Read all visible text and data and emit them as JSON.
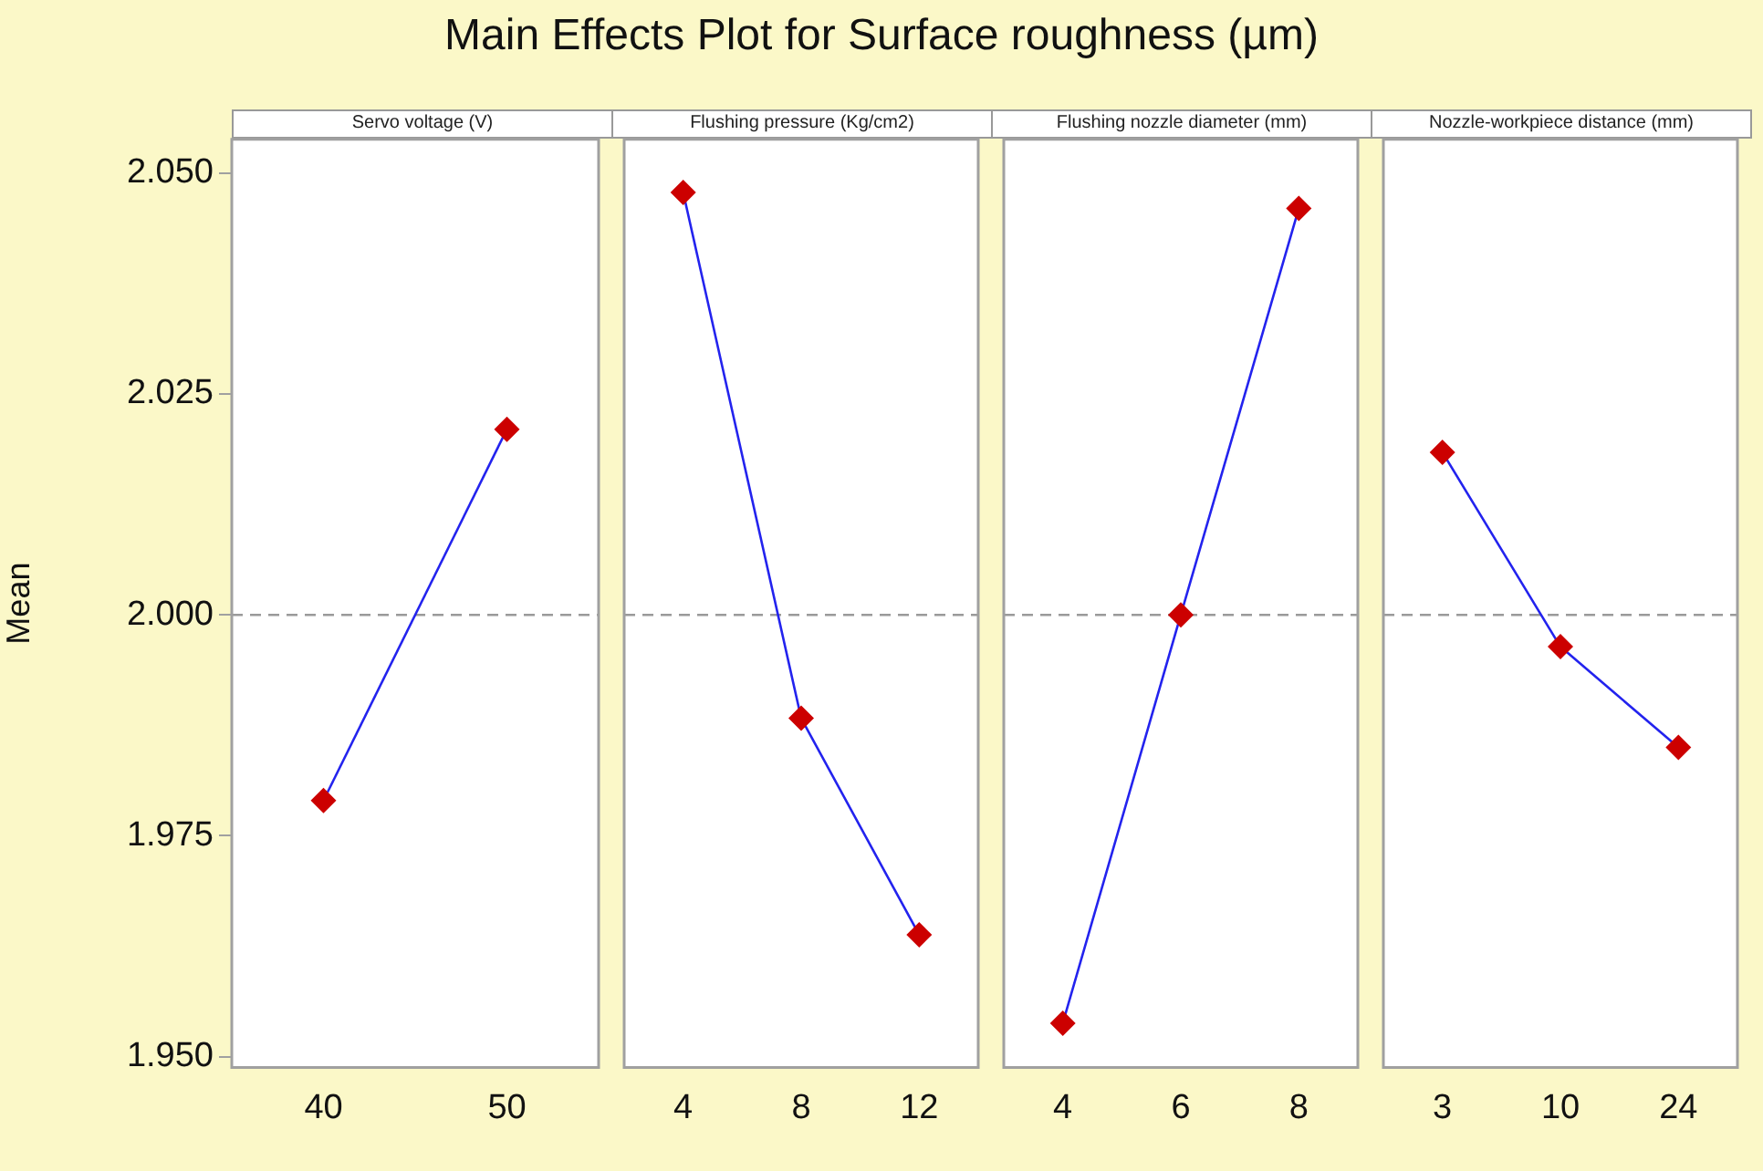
{
  "chart_data": [
    {
      "type": "line",
      "title": "Main Effects Plot for Surface roughness (µm)",
      "subtitle": "Servo voltage (V)",
      "ylabel": "Mean",
      "categories": [
        "40",
        "50"
      ],
      "series": [
        {
          "color": "#2323ee",
          "colors": [
            "#cc0000",
            "#cc0000"
          ],
          "values": [
            1.979,
            2.021
          ]
        }
      ],
      "ylim": [
        1.9488,
        2.0538
      ],
      "yticks": [
        {
          "value": 1.95,
          "label": "1.950"
        },
        {
          "value": 1.975,
          "label": "1.975"
        },
        {
          "value": 2.0,
          "label": "2.000"
        },
        {
          "value": 2.025,
          "label": "2.025"
        },
        {
          "value": 2.05,
          "label": "2.050"
        }
      ],
      "ref_lines": [
        {
          "axis": "y",
          "value": 2.0,
          "color": "#9a9a9a",
          "line_style": "dashed"
        }
      ],
      "marker": "diamond",
      "grid": false,
      "legend": false
    },
    {
      "type": "line",
      "subtitle": "Flushing pressure (Kg/cm2)",
      "categories": [
        "4",
        "8",
        "12"
      ],
      "series": [
        {
          "color": "#2323ee",
          "colors": [
            "#cc0000",
            "#cc0000",
            "#cc0000"
          ],
          "values": [
            2.0478,
            1.9883,
            1.9638
          ]
        }
      ],
      "ylim": [
        1.9488,
        2.0538
      ],
      "ref_lines": [
        {
          "axis": "y",
          "value": 2.0,
          "color": "#9a9a9a",
          "line_style": "dashed"
        }
      ],
      "marker": "diamond",
      "grid": false,
      "legend": false,
      "tick_labels": "x"
    },
    {
      "type": "line",
      "subtitle": "Flushing nozzle diameter (mm)",
      "categories": [
        "4",
        "6",
        "8"
      ],
      "series": [
        {
          "color": "#2323ee",
          "colors": [
            "#cc0000",
            "#cc0000",
            "#cc0000"
          ],
          "values": [
            1.9538,
            2.0,
            2.046
          ]
        }
      ],
      "ylim": [
        1.9488,
        2.0538
      ],
      "ref_lines": [
        {
          "axis": "y",
          "value": 2.0,
          "color": "#9a9a9a",
          "line_style": "dashed"
        }
      ],
      "marker": "diamond",
      "grid": false,
      "legend": false,
      "tick_labels": "x"
    },
    {
      "type": "line",
      "subtitle": "Nozzle-workpiece distance (mm)",
      "categories": [
        "3",
        "10",
        "24"
      ],
      "series": [
        {
          "color": "#2323ee",
          "colors": [
            "#cc0000",
            "#cc0000",
            "#cc0000"
          ],
          "values": [
            2.0184,
            1.9964,
            1.985
          ]
        }
      ],
      "ylim": [
        1.9488,
        2.0538
      ],
      "ref_lines": [
        {
          "axis": "y",
          "value": 2.0,
          "color": "#9a9a9a",
          "line_style": "dashed"
        }
      ],
      "marker": "diamond",
      "grid": false,
      "legend": false,
      "tick_labels": "x"
    }
  ]
}
